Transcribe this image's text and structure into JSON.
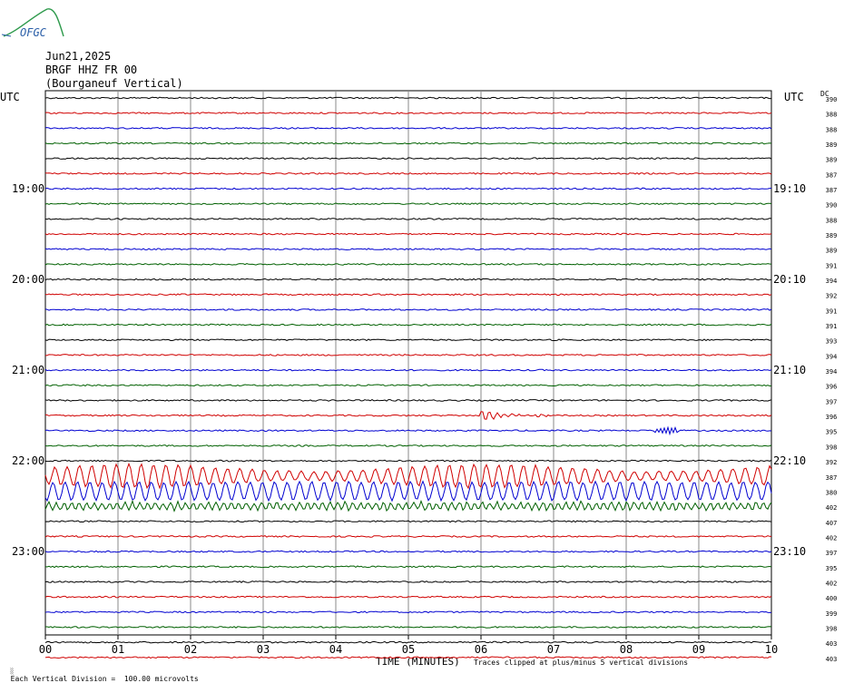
{
  "logo": {
    "text": "OFGC",
    "colors": {
      "arc": "#2e9a4c",
      "text": "#2b5fa8"
    }
  },
  "header": {
    "date": "Jun21,2025",
    "station": "BRGF HHZ FR 00",
    "description": "(Bourganeuf Vertical)"
  },
  "labels": {
    "utc_left": "UTC",
    "utc_right": "UTC",
    "dc": "DC"
  },
  "footer": {
    "scale_note": "Each Vertical Division =  100.00 microvolts",
    "xlabel": "TIME (MINUTES)",
    "clip_note": "Traces clipped at plus/minus 5 vertical divisions"
  },
  "chart_data": {
    "type": "line",
    "title": "BRGF HHZ FR 00 (Bourganeuf Vertical) Jun21,2025",
    "xlabel": "TIME (MINUTES)",
    "x_ticks": [
      "00",
      "01",
      "02",
      "03",
      "04",
      "05",
      "06",
      "07",
      "08",
      "09",
      "10"
    ],
    "xlim": [
      0,
      10
    ],
    "left_time_labels": [
      {
        "row": 6,
        "label": "19:00"
      },
      {
        "row": 12,
        "label": "20:00"
      },
      {
        "row": 18,
        "label": "21:00"
      },
      {
        "row": 24,
        "label": "22:00"
      },
      {
        "row": 30,
        "label": "23:00"
      }
    ],
    "right_time_labels": [
      {
        "row": 6,
        "label": "19:10"
      },
      {
        "row": 12,
        "label": "20:10"
      },
      {
        "row": 18,
        "label": "21:10"
      },
      {
        "row": 24,
        "label": "22:10"
      },
      {
        "row": 30,
        "label": "23:10"
      }
    ],
    "dc_offsets": [
      "390",
      "388",
      "388",
      "389",
      "389",
      "387",
      "387",
      "390",
      "388",
      "389",
      "389",
      "391",
      "394",
      "392",
      "391",
      "391",
      "393",
      "394",
      "394",
      "396",
      "397",
      "396",
      "395",
      "398",
      "392",
      "387",
      "380",
      "402",
      "407",
      "402",
      "397",
      "395",
      "402",
      "400",
      "399",
      "398",
      "403",
      "403"
    ],
    "trace_colors": [
      "#000000",
      "#d00000",
      "#0000d0",
      "#006000"
    ],
    "events": [
      {
        "row": 21,
        "start_min": 6.0,
        "end_min": 7.0,
        "amplitude": "moderate"
      },
      {
        "row": 22,
        "start_min": 8.4,
        "end_min": 8.7,
        "amplitude": "small"
      },
      {
        "row": 25,
        "start_min": 0.0,
        "end_min": 10.0,
        "amplitude": "large"
      },
      {
        "row": 26,
        "start_min": 0.0,
        "end_min": 10.0,
        "amplitude": "large"
      },
      {
        "row": 27,
        "start_min": 0.0,
        "end_min": 10.0,
        "amplitude": "moderate"
      }
    ],
    "grid": true
  }
}
